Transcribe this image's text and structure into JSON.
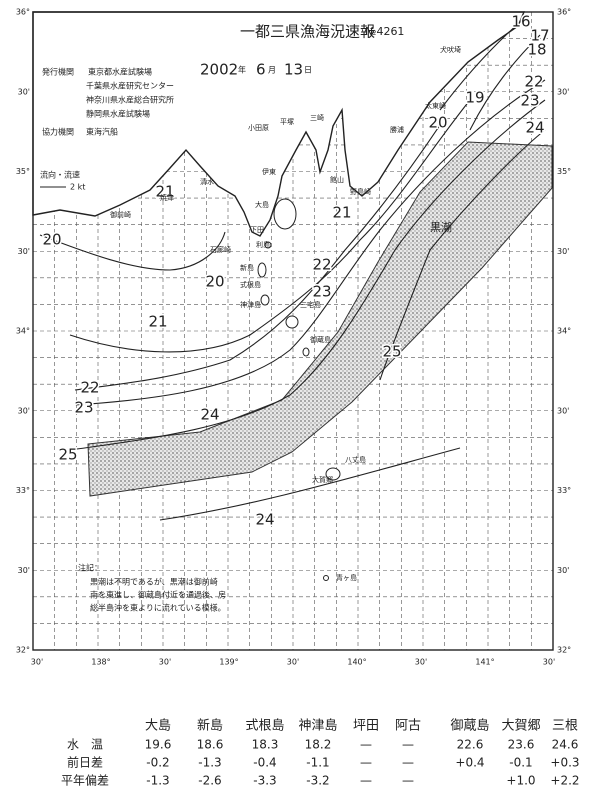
{
  "header": {
    "title": "一都三県漁海況速報",
    "number": "№4261",
    "year": "2002",
    "year_unit": "年",
    "month": "6",
    "month_unit": "月",
    "day": "13",
    "day_unit": "日"
  },
  "issuers": {
    "label": "発行機関",
    "names": [
      "東京都水産試験場",
      "千葉県水産研究センター",
      "神奈川県水産総合研究所",
      "静岡県水産試験場"
    ]
  },
  "cooperation": {
    "label": "協力機関",
    "name": "東海汽船"
  },
  "current_scale": {
    "label": "流向・流速",
    "value": "2 kt"
  },
  "lat_labels": [
    "36°",
    "30'",
    "35°",
    "30'",
    "34°",
    "30'",
    "33°",
    "30'",
    "32°"
  ],
  "lon_labels": [
    "30'",
    "138°",
    "30'",
    "139°",
    "30'",
    "140°",
    "30'",
    "141°",
    "30'"
  ],
  "isotherm_labels": [
    16,
    17,
    18,
    19,
    20,
    21,
    22,
    23,
    24,
    20,
    21,
    22,
    23,
    20,
    21,
    22,
    23,
    24,
    25,
    24,
    25
  ],
  "place_names": [
    "犬吠埼",
    "太東崎",
    "勝浦",
    "野島崎",
    "館山",
    "平塚",
    "小田原",
    "三崎",
    "清水",
    "焼津",
    "御前崎",
    "伊東",
    "下田",
    "石廊崎",
    "大島",
    "利島",
    "新島",
    "式根島",
    "神津島",
    "三宅島",
    "御蔵島",
    "八丈島",
    "大賀郷",
    "青ヶ島"
  ],
  "kuroshio_label": "黒潮",
  "note": {
    "title": "注記：",
    "lines": [
      "黒潮は不明であるが、黒潮は御前崎",
      "南を東進し、御蔵島付近を通過後、房",
      "総半島沖を東よりに流れている模様。"
    ]
  },
  "table": {
    "columns": [
      "大島",
      "新島",
      "式根島",
      "神津島",
      "坪田",
      "阿古",
      "御蔵島",
      "大賀郷",
      "三根"
    ],
    "rows": [
      {
        "label": "水　温",
        "cells": [
          "19.6",
          "18.6",
          "18.3",
          "18.2",
          "—",
          "—",
          "22.6",
          "23.6",
          "24.6"
        ]
      },
      {
        "label": "前日差",
        "cells": [
          "-0.2",
          "-1.3",
          "-0.4",
          "-1.1",
          "—",
          "—",
          "+0.4",
          "-0.1",
          "+0.3"
        ]
      },
      {
        "label": "平年偏差",
        "cells": [
          "-1.3",
          "-2.6",
          "-3.3",
          "-3.2",
          "—",
          "—",
          "",
          "+1.0",
          "+2.2"
        ]
      }
    ]
  }
}
